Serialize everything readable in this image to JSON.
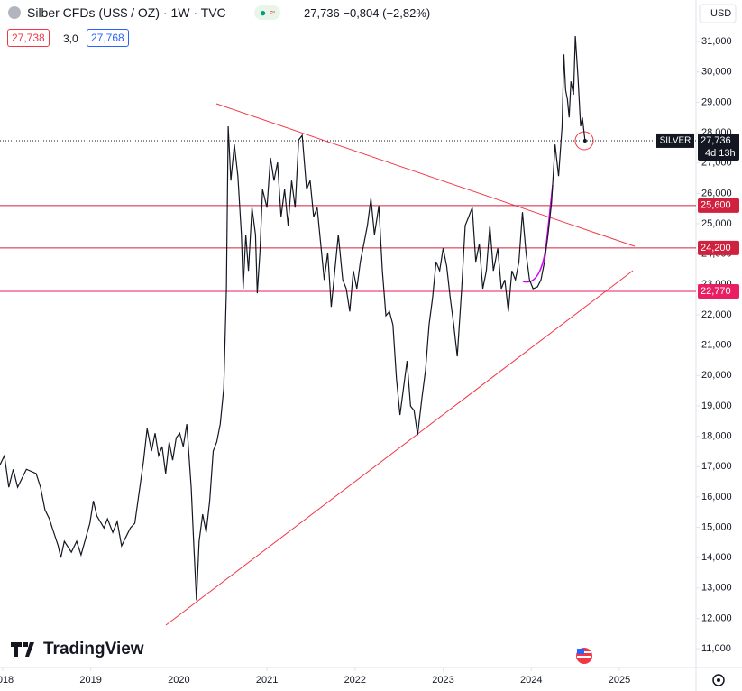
{
  "chart_data": {
    "type": "line",
    "title": "Silber CFDs (US$ / OZ) · 1W · TVC",
    "quote": "27,736 −0,804 (−2,82%)",
    "bid": "27,738",
    "spread": "3,0",
    "ask": "27,768",
    "currency": "USD",
    "symbol_label": "SILVER",
    "last_price": "27,736",
    "countdown": "4d 13h",
    "logo": "TradingView",
    "xlim": [
      2017.97,
      2025.87
    ],
    "ylim": [
      10.38,
      32.37
    ],
    "grid": false,
    "xticks": [
      2018,
      2019,
      2020,
      2021,
      2022,
      2023,
      2024,
      2025
    ],
    "yticks": [
      {
        "value": 11,
        "label": "11,000"
      },
      {
        "value": 12,
        "label": "12,000"
      },
      {
        "value": 13,
        "label": "13,000"
      },
      {
        "value": 14,
        "label": "14,000"
      },
      {
        "value": 15,
        "label": "15,000"
      },
      {
        "value": 16,
        "label": "16,000"
      },
      {
        "value": 17,
        "label": "17,000"
      },
      {
        "value": 18,
        "label": "18,000"
      },
      {
        "value": 19,
        "label": "19,000"
      },
      {
        "value": 20,
        "label": "20,000"
      },
      {
        "value": 21,
        "label": "21,000"
      },
      {
        "value": 22,
        "label": "22,000"
      },
      {
        "value": 23,
        "label": "23,000"
      },
      {
        "value": 24,
        "label": "24,000"
      },
      {
        "value": 25,
        "label": "25,000"
      },
      {
        "value": 26,
        "label": "26,000"
      },
      {
        "value": 27,
        "label": "27,000"
      },
      {
        "value": 28,
        "label": "28,000"
      },
      {
        "value": 29,
        "label": "29,000"
      },
      {
        "value": 30,
        "label": "30,000"
      },
      {
        "value": 31,
        "label": "31,000"
      }
    ],
    "hlines": [
      {
        "value": 25.6,
        "label": "25,600",
        "color": "#d0213f"
      },
      {
        "value": 24.2,
        "label": "24,200",
        "color": "#d0213f"
      },
      {
        "value": 22.77,
        "label": "22,770",
        "color": "#e91e63"
      }
    ],
    "series": [
      {
        "color": "#131722",
        "x": [
          2017.97,
          2018.02,
          2018.07,
          2018.12,
          2018.17,
          2018.27,
          2018.38,
          2018.43,
          2018.48,
          2018.53,
          2018.58,
          2018.63,
          2018.66,
          2018.7,
          2018.78,
          2018.84,
          2018.89,
          2018.99,
          2019.03,
          2019.07,
          2019.15,
          2019.19,
          2019.25,
          2019.3,
          2019.35,
          2019.45,
          2019.5,
          2019.55,
          2019.6,
          2019.64,
          2019.69,
          2019.73,
          2019.77,
          2019.81,
          2019.85,
          2019.89,
          2019.93,
          2019.97,
          2020.01,
          2020.05,
          2020.09,
          2020.14,
          2020.17,
          2020.2,
          2020.23,
          2020.27,
          2020.31,
          2020.35,
          2020.39,
          2020.43,
          2020.47,
          2020.51,
          2020.54,
          2020.56,
          2020.59,
          2020.63,
          2020.67,
          2020.71,
          2020.73,
          2020.76,
          2020.79,
          2020.83,
          2020.87,
          2020.89,
          2020.92,
          2020.95,
          2021.0,
          2021.04,
          2021.08,
          2021.12,
          2021.16,
          2021.2,
          2021.24,
          2021.28,
          2021.32,
          2021.36,
          2021.4,
          2021.45,
          2021.49,
          2021.53,
          2021.57,
          2021.61,
          2021.65,
          2021.69,
          2021.73,
          2021.77,
          2021.81,
          2021.86,
          2021.9,
          2021.94,
          2021.98,
          2022.02,
          2022.06,
          2022.1,
          2022.14,
          2022.18,
          2022.22,
          2022.27,
          2022.31,
          2022.35,
          2022.39,
          2022.43,
          2022.47,
          2022.51,
          2022.55,
          2022.59,
          2022.63,
          2022.67,
          2022.71,
          2022.76,
          2022.8,
          2022.84,
          2022.88,
          2022.92,
          2022.96,
          2023.0,
          2023.04,
          2023.08,
          2023.12,
          2023.16,
          2023.21,
          2023.25,
          2023.29,
          2023.33,
          2023.37,
          2023.41,
          2023.45,
          2023.49,
          2023.53,
          2023.57,
          2023.62,
          2023.66,
          2023.7,
          2023.74,
          2023.78,
          2023.82,
          2023.86,
          2023.9,
          2023.94,
          2023.98,
          2024.02,
          2024.07,
          2024.11,
          2024.15,
          2024.19,
          2024.23,
          2024.27,
          2024.31,
          2024.35,
          2024.37,
          2024.39,
          2024.41,
          2024.43,
          2024.45,
          2024.48,
          2024.5,
          2024.53,
          2024.56,
          2024.58,
          2024.61
        ],
        "values": [
          17.06,
          17.36,
          16.32,
          16.91,
          16.32,
          16.91,
          16.77,
          16.32,
          15.58,
          15.28,
          14.83,
          14.39,
          14.0,
          14.54,
          14.18,
          14.54,
          14.09,
          15.13,
          15.87,
          15.37,
          14.98,
          15.28,
          14.83,
          15.19,
          14.39,
          14.98,
          15.13,
          16.17,
          17.21,
          18.25,
          17.51,
          18.1,
          17.36,
          17.66,
          16.77,
          17.81,
          17.21,
          17.95,
          18.1,
          17.66,
          18.4,
          16.32,
          14.39,
          12.6,
          14.54,
          15.43,
          14.83,
          15.87,
          17.51,
          17.81,
          18.4,
          19.59,
          22.86,
          28.21,
          26.42,
          27.61,
          26.57,
          24.64,
          22.86,
          24.64,
          23.45,
          25.53,
          24.64,
          22.71,
          24.05,
          26.13,
          25.53,
          27.17,
          26.42,
          27.02,
          25.23,
          26.13,
          24.94,
          26.42,
          25.53,
          27.76,
          27.91,
          26.13,
          26.42,
          25.23,
          25.53,
          24.34,
          23.15,
          24.05,
          22.26,
          23.45,
          24.64,
          23.15,
          22.86,
          22.11,
          23.45,
          22.86,
          23.75,
          24.34,
          24.94,
          25.83,
          24.64,
          25.59,
          23.45,
          21.97,
          22.11,
          21.67,
          19.89,
          18.7,
          19.59,
          20.48,
          18.99,
          18.85,
          18.04,
          19.29,
          20.18,
          21.67,
          22.56,
          23.75,
          23.45,
          24.19,
          23.6,
          22.56,
          21.67,
          20.63,
          22.86,
          24.94,
          25.23,
          25.53,
          23.75,
          24.34,
          22.86,
          23.45,
          24.94,
          23.45,
          24.19,
          22.86,
          23.15,
          22.11,
          23.45,
          23.15,
          23.75,
          25.38,
          24.05,
          23.15,
          22.86,
          22.92,
          23.15,
          23.75,
          24.64,
          25.68,
          27.61,
          26.57,
          28.21,
          30.58,
          29.4,
          29.1,
          28.5,
          29.69,
          29.25,
          31.18,
          29.84,
          28.21,
          28.5,
          27.736
        ]
      }
    ]
  }
}
